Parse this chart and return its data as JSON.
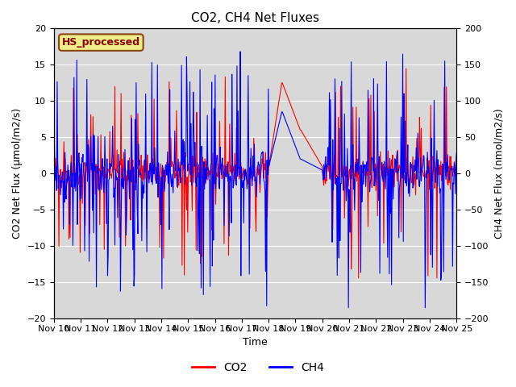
{
  "title": "CO2, CH4 Net Fluxes",
  "xlabel": "Time",
  "ylabel_left": "CO2 Net Flux (μmol/m2/s)",
  "ylabel_right": "CH4 Net Flux (nmol/m2/s)",
  "ylim_left": [
    -20,
    20
  ],
  "ylim_right": [
    -200,
    200
  ],
  "yticks_left": [
    -20,
    -15,
    -10,
    -5,
    0,
    5,
    10,
    15,
    20
  ],
  "yticks_right": [
    -200,
    -150,
    -100,
    -50,
    0,
    50,
    100,
    150,
    200
  ],
  "color_co2": "#ff0000",
  "color_ch4": "#0000ff",
  "background_color": "#d8d8d8",
  "annotation_text": "HS_processed",
  "annotation_facecolor": "#eeee88",
  "annotation_edgecolor": "#8b4513",
  "annotation_textcolor": "#8b0000",
  "title_fontsize": 11,
  "legend_fontsize": 10,
  "axis_label_fontsize": 9,
  "tick_fontsize": 8,
  "linewidth": 0.8,
  "n_points": 720,
  "random_seed": 42
}
